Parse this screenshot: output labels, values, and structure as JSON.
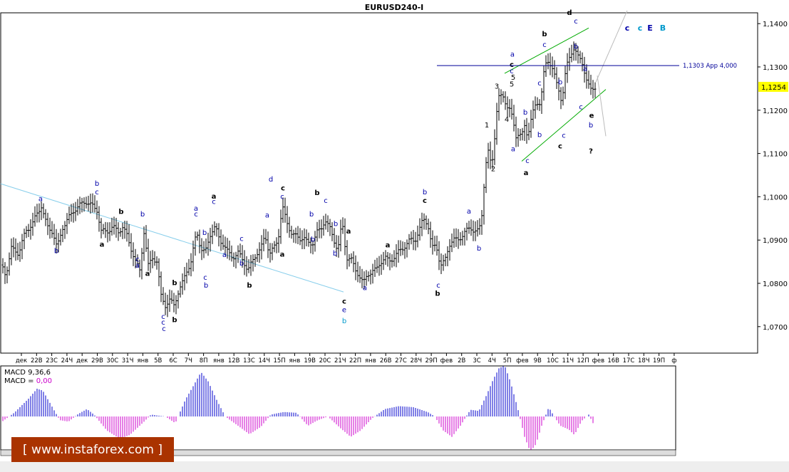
{
  "chart_data": {
    "type": "candlestick",
    "title": "EURUSD240-I",
    "price_axis": {
      "ticks": [
        "1,1400",
        "1,1300",
        "1,1200",
        "1,1100",
        "1,1000",
        "1,0900",
        "1,0800",
        "1,0700"
      ],
      "tick_values": [
        1.14,
        1.13,
        1.12,
        1.11,
        1.1,
        1.09,
        1.08,
        1.07
      ],
      "ylim": [
        1.064,
        1.146
      ],
      "current_price": "1,1254",
      "current_value": 1.1254
    },
    "time_axis": {
      "labels": [
        "дек",
        "22В",
        "23С",
        "24Ч",
        "дек",
        "29В",
        "30С",
        "31Ч",
        "янв",
        "5В",
        "6С",
        "7Ч",
        "8П",
        "янв",
        "12В",
        "13С",
        "14Ч",
        "15П",
        "янв",
        "19В",
        "20С",
        "21Ч",
        "22П",
        "янв",
        "26В",
        "27С",
        "28Ч",
        "29П",
        "фев",
        "2В",
        "3С",
        "4Ч",
        "5П",
        "фев",
        "9В",
        "10С",
        "11Ч",
        "12П",
        "фев",
        "16В",
        "17С",
        "18Ч",
        "19П",
        "ф"
      ]
    },
    "level_line": {
      "label": "1,1303 App 4,000",
      "value": 1.1303
    },
    "bars_path": [
      [
        0,
        1.085
      ],
      [
        8,
        1.082
      ],
      [
        16,
        1.088
      ],
      [
        26,
        1.087
      ],
      [
        36,
        1.092
      ],
      [
        46,
        1.094
      ],
      [
        58,
        1.098
      ],
      [
        66,
        1.093
      ],
      [
        74,
        1.092
      ],
      [
        80,
        1.088
      ],
      [
        88,
        1.093
      ],
      [
        96,
        1.095
      ],
      [
        104,
        1.097
      ],
      [
        112,
        1.098
      ],
      [
        120,
        1.099
      ],
      [
        128,
        1.098
      ],
      [
        136,
        1.097
      ],
      [
        142,
        1.092
      ],
      [
        150,
        1.092
      ],
      [
        158,
        1.093
      ],
      [
        166,
        1.092
      ],
      [
        172,
        1.093
      ],
      [
        178,
        1.091
      ],
      [
        184,
        1.088
      ],
      [
        190,
        1.085
      ],
      [
        196,
        1.083
      ],
      [
        202,
        1.092
      ],
      [
        208,
        1.084
      ],
      [
        214,
        1.086
      ],
      [
        220,
        1.085
      ],
      [
        226,
        1.077
      ],
      [
        232,
        1.075
      ],
      [
        238,
        1.076
      ],
      [
        244,
        1.075
      ],
      [
        250,
        1.078
      ],
      [
        256,
        1.08
      ],
      [
        262,
        1.083
      ],
      [
        268,
        1.085
      ],
      [
        276,
        1.092
      ],
      [
        282,
        1.088
      ],
      [
        288,
        1.087
      ],
      [
        296,
        1.092
      ],
      [
        302,
        1.093
      ],
      [
        308,
        1.09
      ],
      [
        314,
        1.089
      ],
      [
        320,
        1.087
      ],
      [
        326,
        1.086
      ],
      [
        334,
        1.087
      ],
      [
        342,
        1.085
      ],
      [
        348,
        1.083
      ],
      [
        354,
        1.085
      ],
      [
        360,
        1.087
      ],
      [
        366,
        1.088
      ],
      [
        372,
        1.091
      ],
      [
        378,
        1.087
      ],
      [
        384,
        1.088
      ],
      [
        390,
        1.09
      ],
      [
        396,
        1.098
      ],
      [
        402,
        1.094
      ],
      [
        408,
        1.092
      ],
      [
        414,
        1.091
      ],
      [
        420,
        1.09
      ],
      [
        426,
        1.091
      ],
      [
        432,
        1.089
      ],
      [
        438,
        1.089
      ],
      [
        444,
        1.092
      ],
      [
        450,
        1.092
      ],
      [
        456,
        1.095
      ],
      [
        462,
        1.093
      ],
      [
        468,
        1.09
      ],
      [
        474,
        1.088
      ],
      [
        480,
        1.094
      ],
      [
        486,
        1.086
      ],
      [
        492,
        1.086
      ],
      [
        498,
        1.083
      ],
      [
        504,
        1.082
      ],
      [
        510,
        1.08
      ],
      [
        516,
        1.082
      ],
      [
        522,
        1.083
      ],
      [
        528,
        1.083
      ],
      [
        534,
        1.085
      ],
      [
        540,
        1.086
      ],
      [
        546,
        1.085
      ],
      [
        552,
        1.086
      ],
      [
        558,
        1.087
      ],
      [
        564,
        1.088
      ],
      [
        570,
        1.089
      ],
      [
        576,
        1.09
      ],
      [
        582,
        1.09
      ],
      [
        588,
        1.092
      ],
      [
        594,
        1.095
      ],
      [
        600,
        1.094
      ],
      [
        606,
        1.088
      ],
      [
        612,
        1.089
      ],
      [
        618,
        1.084
      ],
      [
        624,
        1.085
      ],
      [
        630,
        1.089
      ],
      [
        636,
        1.09
      ],
      [
        642,
        1.09
      ],
      [
        648,
        1.091
      ],
      [
        654,
        1.092
      ],
      [
        660,
        1.093
      ],
      [
        666,
        1.092
      ],
      [
        672,
        1.092
      ],
      [
        676,
        1.096
      ],
      [
        680,
        1.105
      ],
      [
        684,
        1.111
      ],
      [
        688,
        1.108
      ],
      [
        692,
        1.109
      ],
      [
        696,
        1.119
      ],
      [
        700,
        1.123
      ],
      [
        706,
        1.123
      ],
      [
        712,
        1.121
      ],
      [
        716,
        1.12
      ],
      [
        720,
        1.117
      ],
      [
        724,
        1.114
      ],
      [
        728,
        1.115
      ],
      [
        732,
        1.114
      ],
      [
        736,
        1.116
      ],
      [
        740,
        1.114
      ],
      [
        746,
        1.119
      ],
      [
        752,
        1.121
      ],
      [
        758,
        1.122
      ],
      [
        764,
        1.13
      ],
      [
        770,
        1.131
      ],
      [
        776,
        1.13
      ],
      [
        782,
        1.125
      ],
      [
        788,
        1.122
      ],
      [
        794,
        1.13
      ],
      [
        800,
        1.132
      ],
      [
        806,
        1.135
      ],
      [
        812,
        1.132
      ],
      [
        818,
        1.13
      ],
      [
        824,
        1.127
      ],
      [
        830,
        1.124
      ],
      [
        836,
        1.1254
      ]
    ],
    "macd": {
      "label": "MACD 9,36,6",
      "value_label": "MACD = 0,00",
      "histogram_shape": [
        [
          0,
          -0.18
        ],
        [
          20,
          0.1
        ],
        [
          40,
          0.48
        ],
        [
          52,
          0.75
        ],
        [
          60,
          0.7
        ],
        [
          72,
          0.3
        ],
        [
          84,
          -0.1
        ],
        [
          96,
          -0.14
        ],
        [
          110,
          0.07
        ],
        [
          122,
          0.2
        ],
        [
          132,
          0.05
        ],
        [
          150,
          -0.38
        ],
        [
          168,
          -0.6
        ],
        [
          182,
          -0.5
        ],
        [
          200,
          -0.18
        ],
        [
          212,
          0.05
        ],
        [
          232,
          0.0
        ],
        [
          246,
          -0.18
        ],
        [
          260,
          0.45
        ],
        [
          272,
          0.85
        ],
        [
          282,
          1.2
        ],
        [
          292,
          0.95
        ],
        [
          304,
          0.45
        ],
        [
          316,
          0.0
        ],
        [
          334,
          -0.25
        ],
        [
          350,
          -0.48
        ],
        [
          366,
          -0.28
        ],
        [
          380,
          0.05
        ],
        [
          398,
          0.12
        ],
        [
          416,
          0.1
        ],
        [
          432,
          -0.25
        ],
        [
          446,
          -0.1
        ],
        [
          460,
          0.0
        ],
        [
          478,
          -0.32
        ],
        [
          492,
          -0.55
        ],
        [
          506,
          -0.38
        ],
        [
          522,
          -0.05
        ],
        [
          540,
          0.2
        ],
        [
          560,
          0.28
        ],
        [
          580,
          0.25
        ],
        [
          600,
          0.12
        ],
        [
          610,
          0.0
        ],
        [
          622,
          -0.38
        ],
        [
          634,
          -0.55
        ],
        [
          646,
          -0.25
        ],
        [
          660,
          0.18
        ],
        [
          672,
          0.15
        ],
        [
          682,
          0.55
        ],
        [
          692,
          1.0
        ],
        [
          700,
          1.3
        ],
        [
          708,
          1.38
        ],
        [
          716,
          0.95
        ],
        [
          726,
          0.25
        ],
        [
          736,
          -0.55
        ],
        [
          744,
          -0.95
        ],
        [
          752,
          -0.75
        ],
        [
          760,
          -0.25
        ],
        [
          770,
          0.25
        ],
        [
          776,
          0.05
        ],
        [
          786,
          -0.25
        ],
        [
          798,
          -0.35
        ],
        [
          806,
          -0.5
        ],
        [
          816,
          -0.12
        ],
        [
          826,
          0.05
        ],
        [
          832,
          -0.18
        ]
      ]
    }
  },
  "wave_labels": [
    {
      "t": "a",
      "c": "#0000aa",
      "v": 1.099
    },
    {
      "t": "b",
      "c": "#0000aa",
      "v": 1.087
    },
    {
      "t": "b",
      "c": "#0000aa",
      "v": 1.1025
    },
    {
      "t": "c",
      "c": "#0000aa",
      "v": 1.1006
    },
    {
      "t": "b",
      "c": "#000000",
      "v": 1.096
    },
    {
      "t": "a",
      "c": "#000000",
      "v": 1.0885
    },
    {
      "t": "b",
      "c": "#0000aa",
      "v": 1.0955
    },
    {
      "t": "c",
      "c": "#0000aa",
      "v": 1.085
    },
    {
      "t": "a",
      "c": "#0000aa",
      "v": 1.0836
    },
    {
      "t": "a",
      "c": "#000000",
      "v": 1.0817
    },
    {
      "t": "b",
      "c": "#000000",
      "v": 1.0796
    },
    {
      "t": "c",
      "c": "#0000aa",
      "v": 1.0718
    },
    {
      "t": "c",
      "c": "#0000aa",
      "v": 1.0705
    },
    {
      "t": "c",
      "c": "#0000aa",
      "v": 1.069
    },
    {
      "t": "b",
      "c": "#000000",
      "v": 1.071
    },
    {
      "t": "a",
      "c": "#0000aa",
      "v": 1.0968
    },
    {
      "t": "c",
      "c": "#0000aa",
      "v": 1.0955
    },
    {
      "t": "c",
      "c": "#0000aa",
      "v": 1.0808
    },
    {
      "t": "b",
      "c": "#0000aa",
      "v": 1.079
    },
    {
      "t": "a",
      "c": "#000000",
      "v": 1.0996
    },
    {
      "t": "c",
      "c": "#0000aa",
      "v": 1.0983
    },
    {
      "t": "b",
      "c": "#0000aa",
      "v": 1.0912
    },
    {
      "t": "a",
      "c": "#0000aa",
      "v": 1.0861
    },
    {
      "t": "c",
      "c": "#0000aa",
      "v": 1.0898
    },
    {
      "t": "b",
      "c": "#0000aa",
      "v": 1.0841
    },
    {
      "t": "b",
      "c": "#000000",
      "v": 1.079
    },
    {
      "t": "a",
      "c": "#0000aa",
      "v": 1.0952
    },
    {
      "t": "d",
      "c": "#0000aa",
      "v": 1.1035
    },
    {
      "t": "c",
      "c": "#000000",
      "v": 1.1015
    },
    {
      "t": "c",
      "c": "#0000aa",
      "v": 1.0995
    },
    {
      "t": "a",
      "c": "#000000",
      "v": 1.0862
    },
    {
      "t": "b",
      "c": "#0000aa",
      "v": 1.0955
    },
    {
      "t": "b",
      "c": "#000000",
      "v": 1.1004
    },
    {
      "t": "c",
      "c": "#0000aa",
      "v": 1.0986
    },
    {
      "t": "b",
      "c": "#0000aa",
      "v": 1.0896
    },
    {
      "t": "b",
      "c": "#0000aa",
      "v": 1.0864
    },
    {
      "t": "b",
      "c": "#0000aa",
      "v": 1.0932
    },
    {
      "t": "a",
      "c": "#000000",
      "v": 1.0915
    },
    {
      "t": "c",
      "c": "#000000",
      "v": 1.0753
    },
    {
      "t": "e",
      "c": "#0000aa",
      "v": 1.0733
    },
    {
      "t": "b",
      "c": "#0099cc",
      "v": 1.0708
    },
    {
      "t": "a",
      "c": "#0000aa",
      "v": 1.0784
    },
    {
      "t": "a",
      "c": "#000000",
      "v": 1.0883
    },
    {
      "t": "b",
      "c": "#0000aa",
      "v": 1.1006
    },
    {
      "t": "c",
      "c": "#000000",
      "v": 1.0986
    },
    {
      "t": "c",
      "c": "#0000aa",
      "v": 1.079
    },
    {
      "t": "b",
      "c": "#000000",
      "v": 1.0771
    },
    {
      "t": "a",
      "c": "#0000aa",
      "v": 1.0961
    },
    {
      "t": "b",
      "c": "#0000aa",
      "v": 1.0876
    },
    {
      "t": "1",
      "c": "#000000",
      "v": 1.116
    },
    {
      "t": "3",
      "c": "#000000",
      "v": 1.125
    },
    {
      "t": "2",
      "c": "#000000",
      "v": 1.1059
    },
    {
      "t": "4",
      "c": "#000000",
      "v": 1.1173
    },
    {
      "t": "5",
      "c": "#000000",
      "v": 1.1255
    },
    {
      "t": "a",
      "c": "#0000aa",
      "v": 1.1324
    },
    {
      "t": "c",
      "c": "#000000",
      "v": 1.13
    },
    {
      "t": "c",
      "c": "#0000aa",
      "v": 1.1285
    },
    {
      "t": "5",
      "c": "#000000",
      "v": 1.127
    },
    {
      "t": "a",
      "c": "#0000aa",
      "v": 1.1105
    },
    {
      "t": "c",
      "c": "#0000aa",
      "v": 1.1078
    },
    {
      "t": "a",
      "c": "#000000",
      "v": 1.105
    },
    {
      "t": "b",
      "c": "#0000aa",
      "v": 1.119
    },
    {
      "t": "b",
      "c": "#0000aa",
      "v": 1.1138
    },
    {
      "t": "c",
      "c": "#0000aa",
      "v": 1.1257
    },
    {
      "t": "b",
      "c": "#000000",
      "v": 1.1371
    },
    {
      "t": "c",
      "c": "#0000aa",
      "v": 1.1346
    },
    {
      "t": "c",
      "c": "#0000aa",
      "v": 1.1136
    },
    {
      "t": "c",
      "c": "#000000",
      "v": 1.1112
    },
    {
      "t": "b",
      "c": "#0000aa",
      "v": 1.126
    },
    {
      "t": "d",
      "c": "#000000",
      "v": 1.142
    },
    {
      "t": "c",
      "c": "#0000aa",
      "v": 1.14
    },
    {
      "t": "b",
      "c": "#0000aa",
      "v": 1.1342
    },
    {
      "t": "a",
      "c": "#0000aa",
      "v": 1.129
    },
    {
      "t": "c",
      "c": "#0000aa",
      "v": 1.1202
    },
    {
      "t": "e",
      "c": "#000000",
      "v": 1.1182
    },
    {
      "t": "b",
      "c": "#0000aa",
      "v": 1.116
    },
    {
      "t": "?",
      "c": "#000000",
      "v": 1.11
    }
  ],
  "top_right_labels": [
    {
      "t": "c",
      "c": "#0000aa"
    },
    {
      "t": "c",
      "c": "#0099cc"
    },
    {
      "t": "E",
      "c": "#0000aa"
    },
    {
      "t": "B",
      "c": "#0099cc"
    }
  ],
  "watermark": "[ www.instaforex.com ]",
  "colors": {
    "bars": "#000000",
    "macd_positive": "#0000cc",
    "macd_negative": "#cc00cc",
    "level_line": "#000099",
    "channel": "#00aa00",
    "trendline": "#87ceeb",
    "watermark_bg": "#aa3300"
  }
}
